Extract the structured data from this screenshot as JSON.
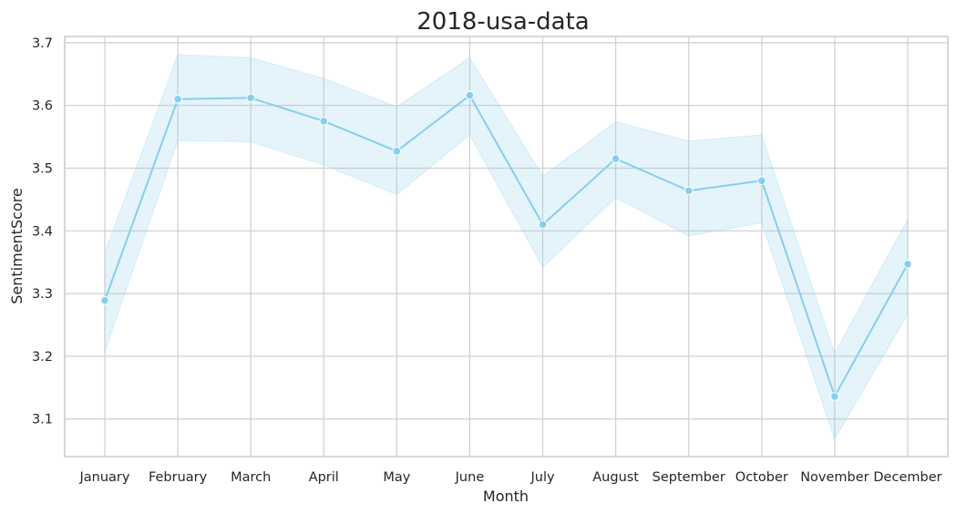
{
  "chart_data": {
    "type": "line",
    "title": "2018-usa-data",
    "xlabel": "Month",
    "ylabel": "SentimentScore",
    "categories": [
      "January",
      "February",
      "March",
      "April",
      "May",
      "June",
      "July",
      "August",
      "September",
      "October",
      "November",
      "December"
    ],
    "series": [
      {
        "values": [
          3.289,
          3.61,
          3.612,
          3.575,
          3.527,
          3.616,
          3.41,
          3.515,
          3.464,
          3.48,
          3.136,
          3.347
        ],
        "ci_upper": [
          3.365,
          3.681,
          3.676,
          3.643,
          3.598,
          3.676,
          3.487,
          3.574,
          3.543,
          3.553,
          3.205,
          3.418
        ],
        "ci_lower": [
          3.208,
          3.544,
          3.542,
          3.505,
          3.458,
          3.553,
          3.342,
          3.453,
          3.392,
          3.413,
          3.068,
          3.267
        ]
      }
    ],
    "ylim": [
      3.04,
      3.71
    ],
    "yticks": [
      3.1,
      3.2,
      3.3,
      3.4,
      3.5,
      3.6,
      3.7
    ],
    "grid": true,
    "colors": {
      "line": "#87ceeb",
      "band": "#87ceeb",
      "marker_edge": "#ffffff"
    }
  }
}
